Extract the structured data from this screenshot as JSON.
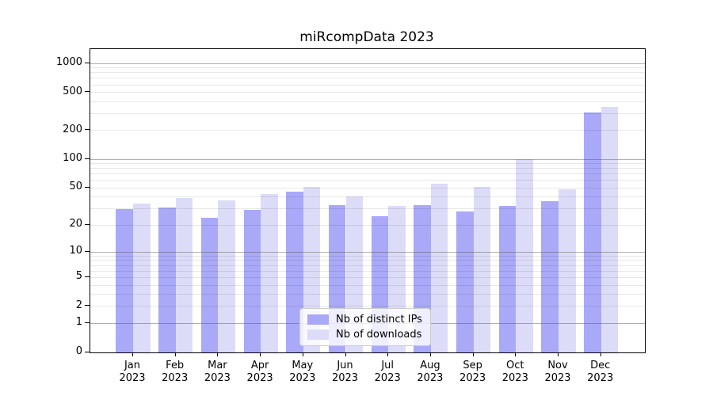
{
  "chart_data": {
    "type": "bar",
    "title": "miRcompData 2023",
    "categories": [
      "Jan",
      "Feb",
      "Mar",
      "Apr",
      "May",
      "Jun",
      "Jul",
      "Aug",
      "Sep",
      "Oct",
      "Nov",
      "Dec"
    ],
    "category_year": "2023",
    "series": [
      {
        "name": "Nb of distinct IPs",
        "color": "#a9a9f8",
        "values": [
          30,
          31,
          24,
          29,
          46,
          33,
          25,
          33,
          28,
          32,
          36,
          310
        ]
      },
      {
        "name": "Nb of downloads",
        "color": "#dcdcf8",
        "values": [
          34,
          39,
          37,
          43,
          51,
          41,
          32,
          55,
          51,
          100,
          48,
          350
        ]
      }
    ],
    "yscale": "log1p",
    "yticks": [
      0,
      1,
      2,
      5,
      10,
      20,
      50,
      100,
      200,
      500,
      1000
    ],
    "ylim": [
      0,
      1400
    ],
    "xlabel": "",
    "ylabel": "",
    "grid": true,
    "legend_position": "lower center",
    "colors": {
      "grid_major": "#b0b0b0",
      "grid_minor": "#e8e8e8",
      "spine": "#000000",
      "background": "#ffffff"
    }
  }
}
